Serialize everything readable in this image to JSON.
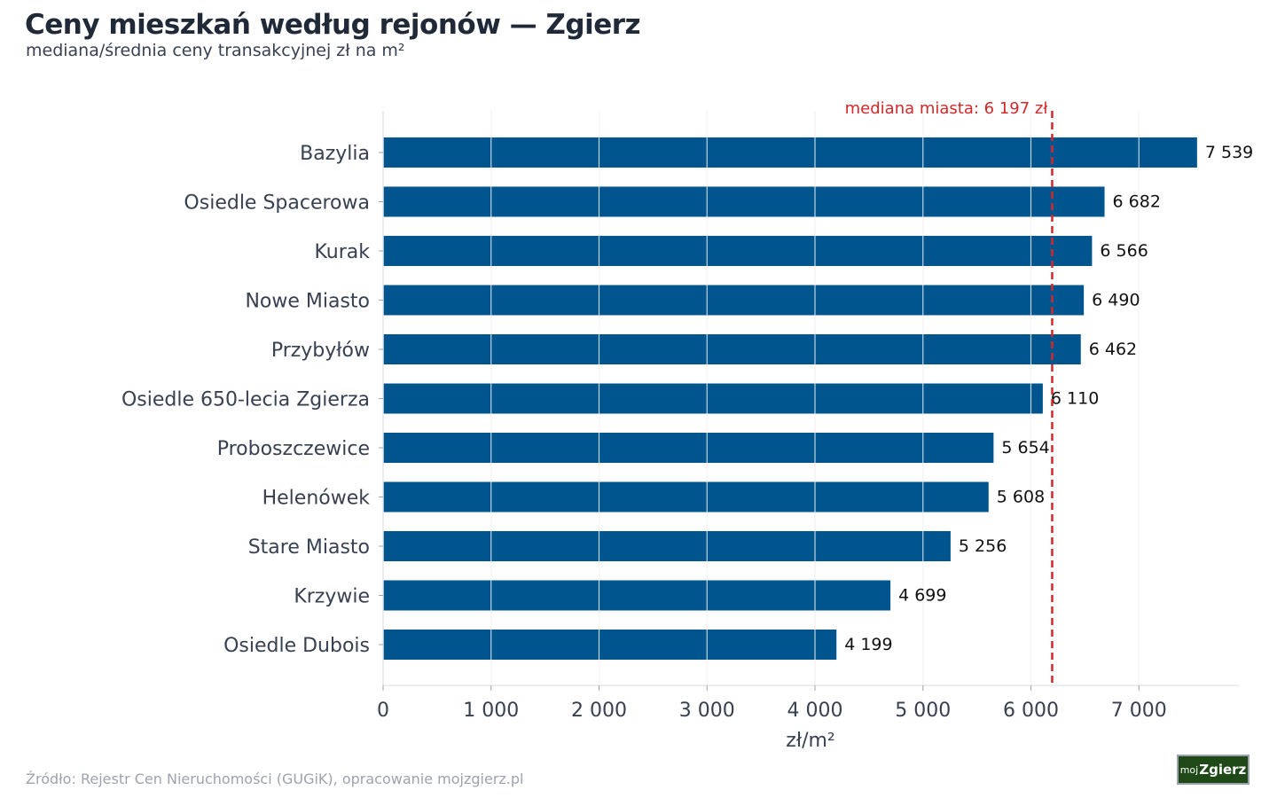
{
  "header": {
    "title": "Ceny mieszkań według rejonów — Zgierz",
    "subtitle": "mediana/średnia ceny transakcyjnej zł na m²"
  },
  "footer": {
    "source": "Źródło: Rejestr Cen Nieruchomości (GUGiK), opracowanie mojzgierz.pl",
    "logo_prefix": "moj",
    "logo_main": "Zgierz"
  },
  "colors": {
    "bar": "#00558f",
    "reference_line": "#d62728",
    "grid": "#e5e7eb",
    "logo_bg": "#1f4a18"
  },
  "chart_data": {
    "type": "bar",
    "orientation": "horizontal",
    "categories": [
      "Bazylia",
      "Osiedle Spacerowa",
      "Kurak",
      "Nowe Miasto",
      "Przybyłów",
      "Osiedle 650-lecia Zgierza",
      "Proboszczewice",
      "Helenówek",
      "Stare Miasto",
      "Krzywie",
      "Osiedle Dubois"
    ],
    "values": [
      7539,
      6682,
      6566,
      6490,
      6462,
      6110,
      5654,
      5608,
      5256,
      4699,
      4199
    ],
    "value_labels": [
      "7 539",
      "6 682",
      "6 566",
      "6 490",
      "6 462",
      "6 110",
      "5 654",
      "5 608",
      "5 256",
      "4 699",
      "4 199"
    ],
    "xlabel": "zł/m²",
    "ylabel": "",
    "xlim": [
      0,
      7900
    ],
    "xticks": [
      0,
      1000,
      2000,
      3000,
      4000,
      5000,
      6000,
      7000
    ],
    "xtick_labels": [
      "0",
      "1 000",
      "2 000",
      "3 000",
      "4 000",
      "5 000",
      "6 000",
      "7 000"
    ],
    "grid": "vertical",
    "reference_line": {
      "value": 6197,
      "label": "mediana miasta: 6 197 zł",
      "style": "dashed"
    }
  }
}
